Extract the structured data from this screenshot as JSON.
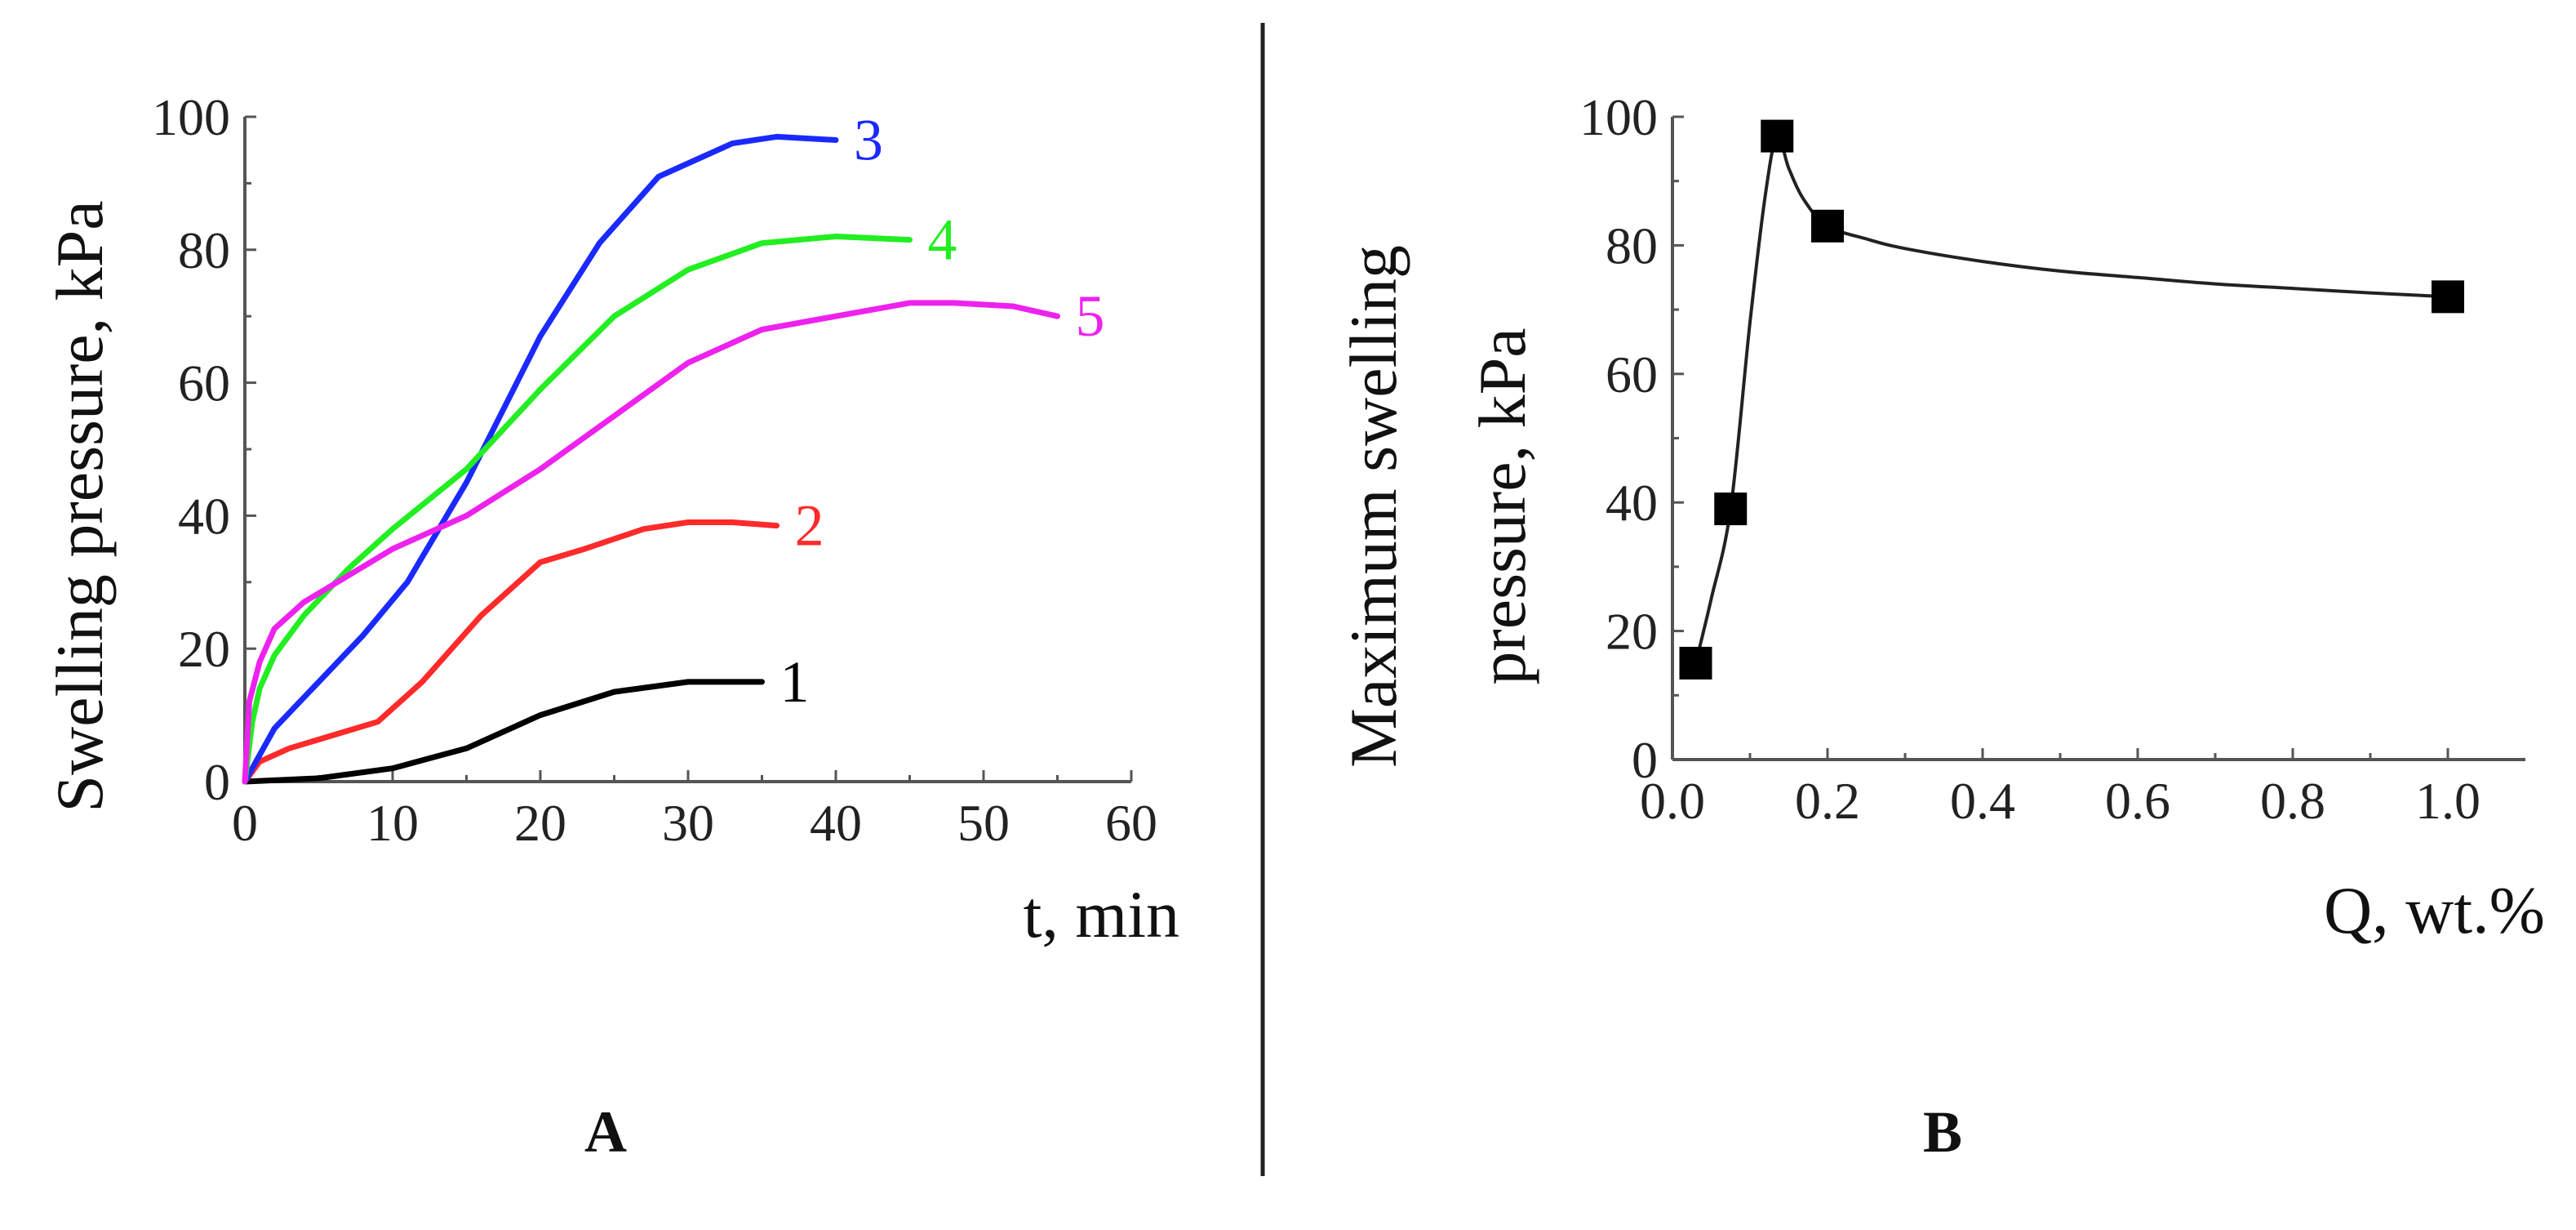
{
  "chart_data": [
    {
      "panel": "A",
      "type": "line",
      "panel_label": "A",
      "xlabel": "t, min",
      "ylabel": "Swelling pressure, kPa",
      "xlim": [
        0,
        60
      ],
      "ylim": [
        0,
        100
      ],
      "x_ticks": [
        "0",
        "10",
        "20",
        "30",
        "40",
        "50",
        "60"
      ],
      "y_ticks": [
        "0",
        "20",
        "40",
        "60",
        "80",
        "100"
      ],
      "series": [
        {
          "name": "1",
          "color": "#000000",
          "x": [
            0,
            5,
            10,
            15,
            20,
            25,
            30,
            33,
            35
          ],
          "y": [
            0,
            0.5,
            2,
            5,
            10,
            13.5,
            15,
            15,
            15
          ]
        },
        {
          "name": "2",
          "color": "#ff2a2a",
          "x": [
            0,
            1,
            3,
            6,
            9,
            12,
            16,
            20,
            23,
            27,
            30,
            33,
            36
          ],
          "y": [
            0,
            3,
            5,
            7,
            9,
            15,
            25,
            33,
            35,
            38,
            39,
            39,
            38.5
          ]
        },
        {
          "name": "3",
          "color": "#1a2aff",
          "x": [
            0,
            2,
            5,
            8,
            11,
            15,
            20,
            24,
            28,
            30,
            33,
            36,
            40
          ],
          "y": [
            0,
            8,
            15,
            22,
            30,
            45,
            67,
            81,
            91,
            93,
            96,
            97,
            96.5
          ]
        },
        {
          "name": "4",
          "color": "#22ee22",
          "x": [
            0,
            0.5,
            1,
            2,
            4,
            7,
            10,
            15,
            20,
            25,
            30,
            35,
            40,
            45
          ],
          "y": [
            0,
            9,
            14,
            19,
            25,
            32,
            38,
            47,
            59,
            70,
            77,
            81,
            82,
            81.5
          ]
        },
        {
          "name": "5",
          "color": "#ee22ee",
          "x": [
            0,
            0.3,
            1,
            2,
            4,
            7,
            10,
            15,
            20,
            25,
            30,
            35,
            40,
            45,
            48,
            52,
            55
          ],
          "y": [
            0,
            12,
            18,
            23,
            27,
            31,
            35,
            40,
            47,
            55,
            63,
            68,
            70,
            72,
            72,
            71.5,
            70
          ]
        }
      ],
      "labels": [
        "1",
        "2",
        "3",
        "4",
        "5"
      ]
    },
    {
      "panel": "B",
      "type": "scatter",
      "panel_label": "B",
      "xlabel": "Q, wt.%",
      "ylabel_lines": [
        "Maximum swelling",
        "pressure, kPa"
      ],
      "xlim": [
        0.0,
        1.1
      ],
      "ylim": [
        0,
        100
      ],
      "x_ticks": [
        "0.0",
        "0.2",
        "0.4",
        "0.6",
        "0.8",
        "1.0"
      ],
      "y_ticks": [
        "0",
        "20",
        "40",
        "60",
        "80",
        "100"
      ],
      "points": {
        "x": [
          0.03,
          0.075,
          0.135,
          0.2,
          1.0
        ],
        "y": [
          15,
          39,
          97,
          83,
          72
        ]
      },
      "fit_curve": {
        "x": [
          0.03,
          0.05,
          0.075,
          0.1,
          0.12,
          0.135,
          0.15,
          0.17,
          0.2,
          0.25,
          0.3,
          0.4,
          0.5,
          0.6,
          0.7,
          0.8,
          0.9,
          1.0
        ],
        "y": [
          15,
          25,
          39,
          68,
          88,
          97,
          92,
          87,
          83,
          81,
          79.5,
          77.5,
          76,
          75,
          74,
          73.3,
          72.6,
          72
        ]
      }
    }
  ]
}
